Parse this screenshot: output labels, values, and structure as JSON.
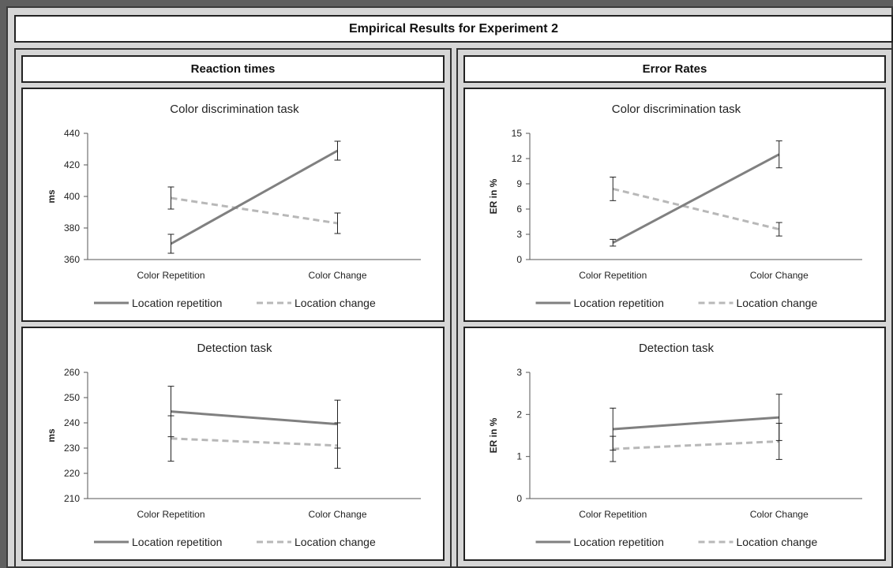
{
  "header": {
    "title": "Empirical Results for Experiment 2"
  },
  "columns": [
    {
      "title": "Reaction times"
    },
    {
      "title": "Error Rates"
    }
  ],
  "legend": {
    "solid_label": "Location repetition",
    "dashed_label": "Location change"
  },
  "colors": {
    "solid": "#808080",
    "dashed": "#b8b8b8",
    "error_bar": "#222222"
  },
  "chart_data": [
    {
      "type": "line",
      "title": "Color discrimination task",
      "ylabel": "ms",
      "categories": [
        "Color Repetition",
        "Color Change"
      ],
      "ylim": [
        360,
        440
      ],
      "yticks": [
        360,
        380,
        400,
        420,
        440
      ],
      "series": [
        {
          "name": "Location repetition",
          "values": [
            370,
            429
          ],
          "errors": [
            6,
            6
          ],
          "style": "solid"
        },
        {
          "name": "Location change",
          "values": [
            399,
            383
          ],
          "errors": [
            7,
            6.5
          ],
          "style": "dashed"
        }
      ]
    },
    {
      "type": "line",
      "title": "Color discrimination task",
      "ylabel": "ER in %",
      "categories": [
        "Color Repetition",
        "Color Change"
      ],
      "ylim": [
        0,
        15
      ],
      "yticks": [
        0,
        3,
        6,
        9,
        12,
        15
      ],
      "series": [
        {
          "name": "Location repetition",
          "values": [
            2,
            12.5
          ],
          "errors": [
            0.4,
            1.6
          ],
          "style": "solid"
        },
        {
          "name": "Location change",
          "values": [
            8.4,
            3.6
          ],
          "errors": [
            1.4,
            0.8
          ],
          "style": "dashed"
        }
      ]
    },
    {
      "type": "line",
      "title": "Detection task",
      "ylabel": "ms",
      "categories": [
        "Color Repetition",
        "Color Change"
      ],
      "ylim": [
        210,
        260
      ],
      "yticks": [
        210,
        220,
        230,
        240,
        250,
        260
      ],
      "series": [
        {
          "name": "Location repetition",
          "values": [
            244.5,
            239.5
          ],
          "errors": [
            10,
            9.5
          ],
          "style": "solid"
        },
        {
          "name": "Location change",
          "values": [
            233.8,
            231
          ],
          "errors": [
            9,
            9
          ],
          "style": "dashed"
        }
      ]
    },
    {
      "type": "line",
      "title": "Detection task",
      "ylabel": "ER in %",
      "categories": [
        "Color Repetition",
        "Color Change"
      ],
      "ylim": [
        0,
        3
      ],
      "yticks": [
        0,
        1,
        2,
        3
      ],
      "series": [
        {
          "name": "Location repetition",
          "values": [
            1.65,
            1.93
          ],
          "errors": [
            0.5,
            0.55
          ],
          "style": "solid"
        },
        {
          "name": "Location change",
          "values": [
            1.18,
            1.36
          ],
          "errors": [
            0.3,
            0.43
          ],
          "style": "dashed"
        }
      ]
    }
  ]
}
